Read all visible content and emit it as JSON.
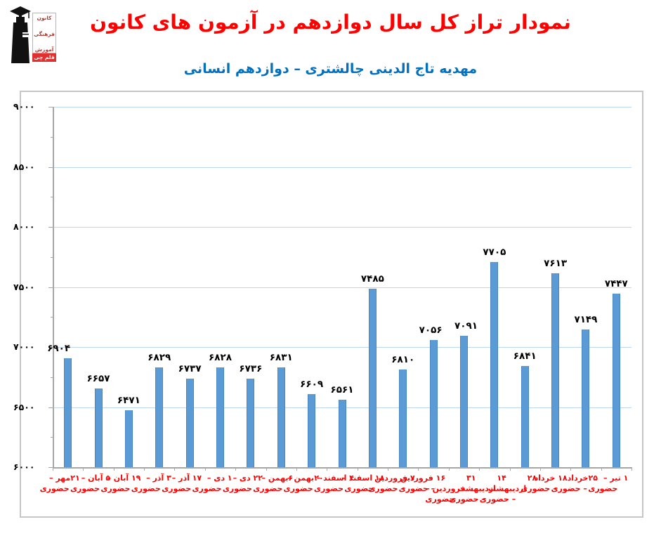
{
  "header": {
    "title": "نمودار تراز کل سال دوازدهم در آزمون های کانون",
    "subtitle": "مهدیه تاج الدینی چالشتری – دوازدهم انسانی",
    "logo": {
      "line1": "کانون",
      "line2": "فرهنگی",
      "line3": "آموزش",
      "badge": "قلم چی"
    }
  },
  "colors": {
    "title": "#ff0000",
    "subtitle": "#0070c0",
    "bar": "#5b9bd5",
    "bar_border": "#4a86c5",
    "gridline": "#bdd7ee",
    "axis": "#a6a6a6",
    "x_label": "#ff0000",
    "value_label": "#000000",
    "frame_border": "#c6c6c6"
  },
  "chart_data": {
    "type": "bar",
    "title": "نمودار تراز کل سال دوازدهم در آزمون های کانون",
    "subtitle": "مهدیه تاج الدینی چالشتری – دوازدهم انسانی",
    "xlabel": "",
    "ylabel": "",
    "ylim": [
      6000,
      9000
    ],
    "ytick_step": 500,
    "grid": "horizontal",
    "legend": "none",
    "yticks": [
      9000,
      8500,
      8000,
      7500,
      7000,
      6500,
      6000
    ],
    "yticks_fa": [
      "۹۰۰۰",
      "۸۵۰۰",
      "۸۰۰۰",
      "۷۵۰۰",
      "۷۰۰۰",
      "۶۵۰۰",
      "۶۰۰۰"
    ],
    "categories": [
      "۲۱ مهر – حضوری",
      "۵ آبان – حضوری",
      "۱۹ آبان – حضوری",
      "۳ آذر – حضوری",
      "۱۷ آذر – حضوری",
      "۱ دی – حضوری",
      "۲۲ دی – حضوری",
      "۶ بهمن – حضوری",
      "۲۰ بهمن – حضوری",
      "۴ اسفند – حضوری",
      "۱۸ اسفند – حضوری",
      "۷ فروردین – حضوری",
      "۱۶ فروردین – حضوری",
      "۳۱ فروردین – حضوری",
      "۱۴ اردیبهشت – حضوری",
      "۲۸ اردیبهشت – حضوری",
      "۱۸ خرداد – حضوری",
      "۲۵ خرداد – حضوری",
      "۱ تیر – حضوری"
    ],
    "categories_lines": [
      [
        "۲۱مهر –",
        "حضوری"
      ],
      [
        "۵ آبان –",
        "حضوری"
      ],
      [
        "۱۹ آبان –",
        "حضوری"
      ],
      [
        "۳ آذر –",
        "حضوری"
      ],
      [
        "۱۷ آذر –",
        "حضوری"
      ],
      [
        "۱ دی –",
        "حضوری"
      ],
      [
        "۲۲ دی –",
        "حضوری"
      ],
      [
        "۶بهمن –",
        "حضوری"
      ],
      [
        "۲۰بهمن –",
        "حضوری"
      ],
      [
        "۴ اسفند –",
        "حضوری"
      ],
      [
        "۱۸ اسفند –",
        "حضوری"
      ],
      [
        "۷ فروردین",
        "– حضوری"
      ],
      [
        "۱۶ فروردین",
        "– حضوری"
      ],
      [
        "۳۱",
        "فروردین –",
        "حضوری"
      ],
      [
        "۱۴",
        "اردیبهشت",
        "– حضوری"
      ],
      [
        "۲۸",
        "اردیبهشت",
        "– حضوری"
      ],
      [
        "۱۸ خرداد",
        "– حضوری"
      ],
      [
        "۲۵خرداد",
        "– حضوری"
      ],
      [
        "۱ تیر –",
        "حضوری"
      ]
    ],
    "values": [
      6904,
      6657,
      6471,
      6829,
      6737,
      6828,
      6736,
      6831,
      6609,
      6561,
      7485,
      6810,
      7056,
      7091,
      7705,
      6841,
      7613,
      7149,
      7447
    ],
    "values_fa": [
      "۶۹۰۴",
      "۶۶۵۷",
      "۶۴۷۱",
      "۶۸۲۹",
      "۶۷۳۷",
      "۶۸۲۸",
      "۶۷۳۶",
      "۶۸۳۱",
      "۶۶۰۹",
      "۶۵۶۱",
      "۷۴۸۵",
      "۶۸۱۰",
      "۷۰۵۶",
      "۷۰۹۱",
      "۷۷۰۵",
      "۶۸۴۱",
      "۷۶۱۳",
      "۷۱۴۹",
      "۷۴۴۷"
    ]
  }
}
